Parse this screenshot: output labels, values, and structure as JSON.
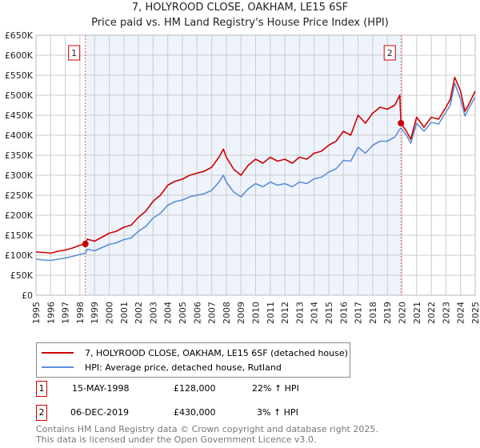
{
  "chart_data": {
    "type": "line",
    "title": "7, HOLYROOD CLOSE, OAKHAM, LE15 6SF",
    "subtitle": "Price paid vs. HM Land Registry's House Price Index (HPI)",
    "xlim": [
      1995,
      2025
    ],
    "ylim": [
      0,
      650000
    ],
    "y_ticks": [
      0,
      50000,
      100000,
      150000,
      200000,
      250000,
      300000,
      350000,
      400000,
      450000,
      500000,
      550000,
      600000,
      650000
    ],
    "y_tick_labels": [
      "£0",
      "£50K",
      "£100K",
      "£150K",
      "£200K",
      "£250K",
      "£300K",
      "£350K",
      "£400K",
      "£450K",
      "£500K",
      "£550K",
      "£600K",
      "£650K"
    ],
    "x_tick_labels": [
      "1995",
      "1996",
      "1997",
      "1998",
      "1999",
      "2000",
      "2001",
      "2002",
      "2003",
      "2004",
      "2005",
      "2006",
      "2007",
      "2008",
      "2009",
      "2010",
      "2011",
      "2012",
      "2013",
      "2014",
      "2015",
      "2016",
      "2017",
      "2018",
      "2019",
      "2020",
      "2021",
      "2022",
      "2023",
      "2024",
      "2025"
    ],
    "grid": true,
    "shaded_range": [
      1998.37,
      2019.93
    ],
    "series": [
      {
        "name": "7, HOLYROOD CLOSE, OAKHAM, LE15 6SF (detached house)",
        "color": "#cc0000",
        "x": [
          1995,
          1995.5,
          1996,
          1996.5,
          1997,
          1997.5,
          1998,
          1998.37,
          1998.5,
          1999,
          1999.5,
          2000,
          2000.5,
          2001,
          2001.5,
          2002,
          2002.5,
          2003,
          2003.5,
          2004,
          2004.5,
          2005,
          2005.5,
          2006,
          2006.5,
          2007,
          2007.5,
          2007.8,
          2008,
          2008.5,
          2009,
          2009.5,
          2010,
          2010.5,
          2011,
          2011.5,
          2012,
          2012.5,
          2013,
          2013.5,
          2014,
          2014.5,
          2015,
          2015.5,
          2016,
          2016.5,
          2017,
          2017.5,
          2018,
          2018.5,
          2019,
          2019.5,
          2019.85,
          2019.93,
          2020.3,
          2020.6,
          2021,
          2021.5,
          2022,
          2022.5,
          2023,
          2023.3,
          2023.6,
          2024,
          2024.3,
          2024.6,
          2025
        ],
        "y": [
          108000,
          107000,
          105000,
          110000,
          113000,
          118000,
          125000,
          128000,
          140000,
          135000,
          145000,
          155000,
          160000,
          170000,
          175000,
          195000,
          210000,
          235000,
          250000,
          275000,
          285000,
          290000,
          300000,
          305000,
          310000,
          320000,
          345000,
          365000,
          345000,
          315000,
          300000,
          325000,
          340000,
          330000,
          345000,
          335000,
          340000,
          330000,
          345000,
          340000,
          355000,
          360000,
          375000,
          385000,
          410000,
          400000,
          450000,
          430000,
          455000,
          470000,
          465000,
          475000,
          500000,
          430000,
          410000,
          390000,
          445000,
          420000,
          445000,
          440000,
          470000,
          490000,
          545000,
          510000,
          460000,
          480000,
          510000
        ]
      },
      {
        "name": "HPI: Average price, detached house, Rutland",
        "color": "#5b8fd4",
        "x": [
          1995,
          1995.5,
          1996,
          1996.5,
          1997,
          1997.5,
          1998,
          1998.37,
          1998.5,
          1999,
          1999.5,
          2000,
          2000.5,
          2001,
          2001.5,
          2002,
          2002.5,
          2003,
          2003.5,
          2004,
          2004.5,
          2005,
          2005.5,
          2006,
          2006.5,
          2007,
          2007.5,
          2007.8,
          2008,
          2008.5,
          2009,
          2009.5,
          2010,
          2010.5,
          2011,
          2011.5,
          2012,
          2012.5,
          2013,
          2013.5,
          2014,
          2014.5,
          2015,
          2015.5,
          2016,
          2016.5,
          2017,
          2017.5,
          2018,
          2018.5,
          2019,
          2019.5,
          2019.85,
          2019.93,
          2020.3,
          2020.6,
          2021,
          2021.5,
          2022,
          2022.5,
          2023,
          2023.3,
          2023.6,
          2024,
          2024.3,
          2024.6,
          2025
        ],
        "y": [
          90000,
          88000,
          87000,
          90000,
          93000,
          97000,
          102000,
          105000,
          115000,
          111000,
          119000,
          127000,
          131000,
          139000,
          143000,
          160000,
          172000,
          193000,
          205000,
          225000,
          234000,
          238000,
          246000,
          250000,
          254000,
          262000,
          283000,
          300000,
          283000,
          258000,
          246000,
          266000,
          279000,
          271000,
          283000,
          275000,
          279000,
          271000,
          283000,
          279000,
          291000,
          295000,
          308000,
          316000,
          337000,
          335000,
          370000,
          355000,
          375000,
          385000,
          385000,
          395000,
          415000,
          418000,
          400000,
          380000,
          430000,
          410000,
          432000,
          428000,
          458000,
          475000,
          530000,
          490000,
          448000,
          470000,
          495000
        ]
      }
    ],
    "annotations": [
      {
        "label": "1",
        "x": 1998.37,
        "y": 128000
      },
      {
        "label": "2",
        "x": 2019.93,
        "y": 430000
      }
    ]
  },
  "legend": {
    "red": "7, HOLYROOD CLOSE, OAKHAM, LE15 6SF (detached house)",
    "blue": "HPI: Average price, detached house, Rutland"
  },
  "sales": [
    {
      "num": "1",
      "date": "15-MAY-1998",
      "price": "£128,000",
      "hpi": "22% ↑ HPI"
    },
    {
      "num": "2",
      "date": "06-DEC-2019",
      "price": "£430,000",
      "hpi": "3% ↑ HPI"
    }
  ],
  "footer": {
    "line1": "Contains HM Land Registry data © Crown copyright and database right 2025.",
    "line2": "This data is licensed under the Open Government Licence v3.0."
  }
}
